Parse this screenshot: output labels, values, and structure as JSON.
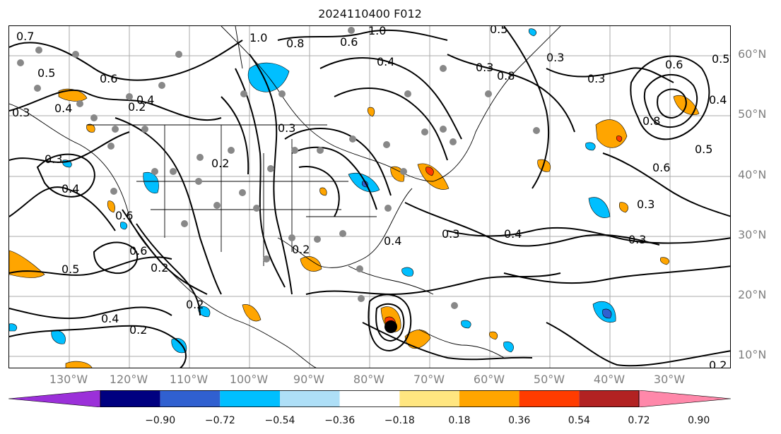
{
  "title": "2024110400 F012",
  "lat_labels": [
    "60°N",
    "50°N",
    "40°N",
    "30°N",
    "20°N",
    "10°N"
  ],
  "lon_labels": [
    "130°W",
    "120°W",
    "110°W",
    "100°W",
    "90°W",
    "80°W",
    "70°W",
    "60°W",
    "50°W",
    "40°W",
    "30°W"
  ],
  "colorbar": {
    "ticks": [
      "−0.90",
      "−0.72",
      "−0.54",
      "−0.36",
      "−0.18",
      "0.18",
      "0.36",
      "0.54",
      "0.72",
      "0.90"
    ],
    "colors": [
      "#9b30d9",
      "#000080",
      "#3060d0",
      "#00bfff",
      "#aedff7",
      "#ffffff",
      "#ffe680",
      "#ffa500",
      "#ff3c00",
      "#b22222",
      "#ff88aa"
    ]
  },
  "contour_labels": [
    "0.7",
    "1.0",
    "0.5",
    "0.6",
    "0.3",
    "0.4",
    "0.2",
    "1.0",
    "0.6",
    "0.4",
    "0.8",
    "0.3",
    "0.3",
    "0.4",
    "0.3",
    "0.4",
    "0.2",
    "0.3",
    "0.6",
    "0.5",
    "0.4",
    "0.8",
    "0.6",
    "0.5",
    "0.3",
    "0.2",
    "0.5",
    "0.4",
    "0.6",
    "0.3",
    "0.2",
    "0.6",
    "0.3",
    "0.8",
    "0.2",
    "0.3",
    "0.2",
    "0.4",
    "0.5",
    "0.4",
    "0.2"
  ],
  "colors": {
    "positive": "#ffa500",
    "negative": "#00bfff",
    "light_negative": "#aedff7",
    "grid": "#aaaaaa",
    "station": "#888888"
  }
}
